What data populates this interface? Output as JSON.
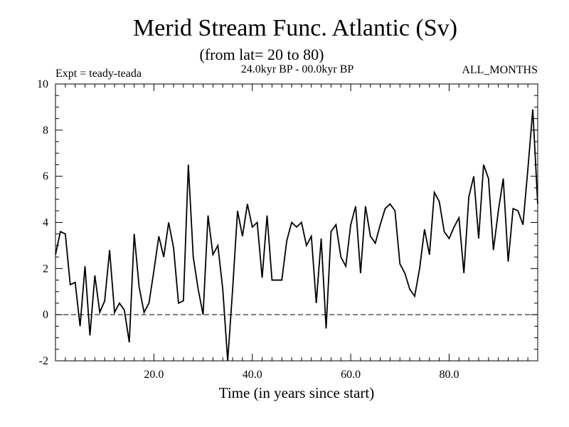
{
  "chart_data": {
    "type": "line",
    "title": "Merid Stream Func. Atlantic (Sv)",
    "subtitle": "(from lat= 20 to 80)",
    "period": "24.0kyr BP - 00.0kyr BP",
    "experiment": "Expt = teady-teada",
    "months": "ALL_MONTHS",
    "xlabel": "Time (in years since start)",
    "ylabel": "",
    "xlim": [
      0,
      98
    ],
    "ylim": [
      -2,
      10
    ],
    "x_ticks": [
      20,
      40,
      60,
      80
    ],
    "x_tick_labels": [
      "20.0",
      "40.0",
      "60.0",
      "80.0"
    ],
    "y_ticks": [
      -2,
      0,
      2,
      4,
      6,
      8,
      10
    ],
    "y_tick_labels": [
      "-2",
      "0",
      "2",
      "4",
      "6",
      "8",
      "10"
    ],
    "reference_line": {
      "y": 0,
      "style": "dashed"
    },
    "series": [
      {
        "name": "Merid Stream Func.",
        "x": [
          0,
          1,
          2,
          3,
          4,
          5,
          6,
          7,
          8,
          9,
          10,
          11,
          12,
          13,
          14,
          15,
          16,
          17,
          18,
          19,
          20,
          21,
          22,
          23,
          24,
          25,
          26,
          27,
          28,
          29,
          30,
          31,
          32,
          33,
          34,
          35,
          36,
          37,
          38,
          39,
          40,
          41,
          42,
          43,
          44,
          45,
          46,
          47,
          48,
          49,
          50,
          51,
          52,
          53,
          54,
          55,
          56,
          57,
          58,
          59,
          60,
          61,
          62,
          63,
          64,
          65,
          66,
          67,
          68,
          69,
          70,
          71,
          72,
          73,
          74,
          75,
          76,
          77,
          78,
          79,
          80,
          81,
          82,
          83,
          84,
          85,
          86,
          87,
          88,
          89,
          90,
          91,
          92,
          93,
          94,
          95,
          96,
          97,
          98
        ],
        "values": [
          2.6,
          3.6,
          3.5,
          1.3,
          1.4,
          -0.5,
          2.1,
          -0.9,
          1.7,
          0.1,
          0.6,
          2.8,
          0.1,
          0.5,
          0.2,
          -1.2,
          3.5,
          1.2,
          0.1,
          0.5,
          1.9,
          3.4,
          2.5,
          4.0,
          2.9,
          0.5,
          0.6,
          6.5,
          2.5,
          1.1,
          0.0,
          4.3,
          2.6,
          3.0,
          1.1,
          -2.0,
          1.1,
          4.5,
          3.4,
          4.8,
          3.8,
          4.0,
          1.6,
          4.3,
          1.5,
          1.5,
          1.5,
          3.2,
          4.0,
          3.8,
          4.0,
          3.0,
          3.4,
          0.5,
          3.3,
          -0.6,
          3.6,
          3.9,
          2.5,
          2.1,
          3.9,
          4.7,
          1.8,
          4.7,
          3.4,
          3.1,
          3.9,
          4.6,
          4.8,
          4.5,
          2.2,
          1.8,
          1.1,
          0.8,
          2.0,
          3.7,
          2.6,
          5.3,
          4.9,
          3.6,
          3.3,
          3.8,
          4.2,
          1.8,
          5.1,
          6.0,
          3.3,
          6.5,
          5.9,
          2.8,
          4.5,
          5.9,
          2.3,
          4.6,
          4.5,
          3.9,
          6.3,
          8.9,
          4.8
        ]
      }
    ]
  }
}
